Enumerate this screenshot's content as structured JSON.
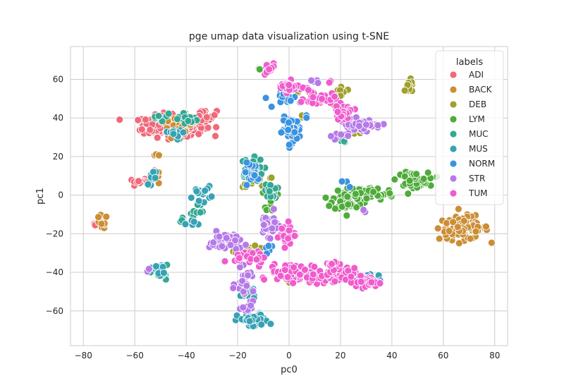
{
  "chart_data": {
    "type": "scatter",
    "title": "pge umap data visualization using t-SNE",
    "xlabel": "pc0",
    "ylabel": "pc1",
    "xlim": [
      -85,
      85
    ],
    "ylim": [
      -78,
      77
    ],
    "xticks": [
      -80,
      -60,
      -40,
      -20,
      0,
      20,
      40,
      60,
      80
    ],
    "yticks": [
      -60,
      -40,
      -20,
      0,
      20,
      40,
      60
    ],
    "grid": true,
    "legend_title": "labels",
    "legend_position": "top-right",
    "series": [
      {
        "name": "ADI",
        "color": "#f0697a",
        "clusters": [
          {
            "cx": -45,
            "cy": 36,
            "sx": 10,
            "sy": 4.5,
            "n": 230
          },
          {
            "cx": -33,
            "cy": 41,
            "sx": 4,
            "sy": 2.5,
            "n": 30
          },
          {
            "cx": -58,
            "cy": 7,
            "sx": 3.5,
            "sy": 1,
            "n": 14
          },
          {
            "cx": -75,
            "cy": -15,
            "sx": 1.5,
            "sy": 1,
            "n": 4
          }
        ]
      },
      {
        "name": "BACK",
        "color": "#cc8e35",
        "clusters": [
          {
            "cx": 68,
            "cy": -17,
            "sx": 8,
            "sy": 5,
            "n": 95
          },
          {
            "cx": -73,
            "cy": -14,
            "sx": 2,
            "sy": 3,
            "n": 16
          },
          {
            "cx": -43,
            "cy": 34,
            "sx": 5,
            "sy": 5,
            "n": 22
          },
          {
            "cx": -52,
            "cy": 9,
            "sx": 1.5,
            "sy": 3,
            "n": 7
          },
          {
            "cx": -51,
            "cy": 21,
            "sx": 0.8,
            "sy": 0.6,
            "n": 3
          },
          {
            "cx": -19,
            "cy": -28,
            "sx": 1.5,
            "sy": 1.5,
            "n": 4
          },
          {
            "cx": 30,
            "cy": 36,
            "sx": 4,
            "sy": 1,
            "n": 5
          }
        ]
      },
      {
        "name": "DEB",
        "color": "#a0a02c",
        "clusters": [
          {
            "cx": 47,
            "cy": 56,
            "sx": 1.5,
            "sy": 3,
            "n": 14
          },
          {
            "cx": 20,
            "cy": 53,
            "sx": 2,
            "sy": 4,
            "n": 14
          },
          {
            "cx": 27,
            "cy": 34,
            "sx": 2.5,
            "sy": 2,
            "n": 10
          },
          {
            "cx": 5,
            "cy": 54,
            "sx": 3,
            "sy": 1,
            "n": 6
          },
          {
            "cx": 5,
            "cy": 41,
            "sx": 2,
            "sy": 1,
            "n": 4
          },
          {
            "cx": -15,
            "cy": -29,
            "sx": 5,
            "sy": 2,
            "n": 16
          },
          {
            "cx": -12,
            "cy": 8,
            "sx": 6,
            "sy": 3,
            "n": 16
          },
          {
            "cx": 0,
            "cy": -45,
            "sx": 1,
            "sy": 1,
            "n": 2
          }
        ]
      },
      {
        "name": "LYM",
        "color": "#4fab3a",
        "clusters": [
          {
            "cx": 48,
            "cy": 8,
            "sx": 5,
            "sy": 3,
            "n": 75
          },
          {
            "cx": 33,
            "cy": 1,
            "sx": 6,
            "sy": 3,
            "n": 50
          },
          {
            "cx": 23,
            "cy": -2,
            "sx": 5,
            "sy": 5,
            "n": 75
          },
          {
            "cx": -7,
            "cy": -2,
            "sx": 2,
            "sy": 5,
            "n": 10
          },
          {
            "cx": -12,
            "cy": 66,
            "sx": 1,
            "sy": 1,
            "n": 2
          }
        ]
      },
      {
        "name": "MUC",
        "color": "#33a894",
        "clusters": [
          {
            "cx": -15,
            "cy": 13,
            "sx": 4,
            "sy": 5,
            "n": 60
          },
          {
            "cx": -7,
            "cy": 2,
            "sx": 2,
            "sy": 3,
            "n": 20
          },
          {
            "cx": -44,
            "cy": 40,
            "sx": 7,
            "sy": 3,
            "n": 22
          },
          {
            "cx": -36,
            "cy": -8,
            "sx": 3,
            "sy": 5,
            "n": 10
          },
          {
            "cx": -50,
            "cy": -41,
            "sx": 3,
            "sy": 4,
            "n": 8
          },
          {
            "cx": -42,
            "cy": -13,
            "sx": 2,
            "sy": 2,
            "n": 4
          },
          {
            "cx": 21,
            "cy": 28,
            "sx": 2,
            "sy": 1,
            "n": 3
          }
        ]
      },
      {
        "name": "MUS",
        "color": "#36a2b4",
        "clusters": [
          {
            "cx": -14,
            "cy": -65,
            "sx": 5,
            "sy": 3,
            "n": 55
          },
          {
            "cx": -16,
            "cy": -50,
            "sx": 3,
            "sy": 4,
            "n": 12
          },
          {
            "cx": -34,
            "cy": 1,
            "sx": 3,
            "sy": 3,
            "n": 14
          },
          {
            "cx": -50,
            "cy": -39,
            "sx": 1.5,
            "sy": 3,
            "n": 14
          },
          {
            "cx": -53,
            "cy": 9,
            "sx": 2,
            "sy": 3,
            "n": 10
          },
          {
            "cx": -44,
            "cy": 32,
            "sx": 3,
            "sy": 3,
            "n": 12
          },
          {
            "cx": 27,
            "cy": -43,
            "sx": 5,
            "sy": 2,
            "n": 14
          },
          {
            "cx": -38,
            "cy": -15,
            "sx": 3,
            "sy": 2,
            "n": 6
          }
        ]
      },
      {
        "name": "NORM",
        "color": "#3a93e0",
        "clusters": [
          {
            "cx": 1,
            "cy": 34,
            "sx": 3,
            "sy": 5,
            "n": 55
          },
          {
            "cx": -14,
            "cy": 12,
            "sx": 3,
            "sy": 4,
            "n": 20
          },
          {
            "cx": 0,
            "cy": 50,
            "sx": 4,
            "sy": 4,
            "n": 16
          },
          {
            "cx": 23,
            "cy": 6,
            "sx": 2,
            "sy": 1.5,
            "n": 3
          },
          {
            "cx": 26,
            "cy": -43,
            "sx": 6,
            "sy": 2,
            "n": 14
          },
          {
            "cx": -8,
            "cy": -28,
            "sx": 3,
            "sy": 3,
            "n": 8
          },
          {
            "cx": 7,
            "cy": 40,
            "sx": 1,
            "sy": 1,
            "n": 2
          }
        ]
      },
      {
        "name": "STR",
        "color": "#b67ae8",
        "clusters": [
          {
            "cx": 27,
            "cy": 36,
            "sx": 6,
            "sy": 3,
            "n": 40
          },
          {
            "cx": 33,
            "cy": 36,
            "sx": 4,
            "sy": 1,
            "n": 14
          },
          {
            "cx": 18,
            "cy": 31,
            "sx": 3,
            "sy": 1.5,
            "n": 10
          },
          {
            "cx": -25,
            "cy": -24,
            "sx": 5,
            "sy": 4,
            "n": 45
          },
          {
            "cx": -8,
            "cy": -15,
            "sx": 3,
            "sy": 5,
            "n": 35
          },
          {
            "cx": -17,
            "cy": -46,
            "sx": 3,
            "sy": 6,
            "n": 28
          },
          {
            "cx": -16,
            "cy": -59,
            "sx": 2,
            "sy": 3,
            "n": 10
          },
          {
            "cx": 10,
            "cy": 59,
            "sx": 2,
            "sy": 1,
            "n": 4
          },
          {
            "cx": -55,
            "cy": -40,
            "sx": 1,
            "sy": 1,
            "n": 2
          },
          {
            "cx": 29,
            "cy": -8,
            "sx": 1,
            "sy": 1,
            "n": 2
          }
        ]
      },
      {
        "name": "TUM",
        "color": "#f05ccd",
        "clusters": [
          {
            "cx": -8,
            "cy": 65,
            "sx": 2,
            "sy": 3,
            "n": 20
          },
          {
            "cx": 0,
            "cy": 56,
            "sx": 4,
            "sy": 2.5,
            "n": 35
          },
          {
            "cx": 12,
            "cy": 50,
            "sx": 5,
            "sy": 3,
            "n": 30
          },
          {
            "cx": 21,
            "cy": 43,
            "sx": 3.5,
            "sy": 3,
            "n": 25
          },
          {
            "cx": 1,
            "cy": -40,
            "sx": 7,
            "sy": 4,
            "n": 80
          },
          {
            "cx": 17,
            "cy": -42,
            "sx": 7,
            "sy": 3.5,
            "n": 90
          },
          {
            "cx": 30,
            "cy": -45,
            "sx": 4,
            "sy": 2.5,
            "n": 50
          },
          {
            "cx": -15,
            "cy": -32,
            "sx": 5,
            "sy": 2.5,
            "n": 30
          },
          {
            "cx": -1,
            "cy": -20,
            "sx": 3,
            "sy": 5,
            "n": 25
          },
          {
            "cx": 18,
            "cy": -36,
            "sx": 2,
            "sy": 2,
            "n": 14
          },
          {
            "cx": 16,
            "cy": 59,
            "sx": 1,
            "sy": 1,
            "n": 2
          }
        ]
      }
    ]
  }
}
